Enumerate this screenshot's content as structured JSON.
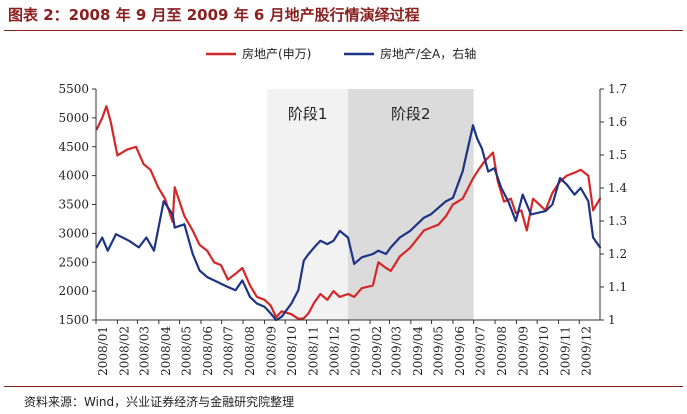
{
  "figure": {
    "title": "图表 2：2008 年 9 月至 2009 年 6 月地产股行情演绎过程",
    "source_note": "资料来源：Wind，兴业证券经济与金融研究院整理"
  },
  "chart_data": {
    "type": "line",
    "title": "",
    "xlabel": "",
    "ylabel": "",
    "y2label": "",
    "x_ticks": [
      "2008/01",
      "2008/02",
      "2008/03",
      "2008/04",
      "2008/05",
      "2008/06",
      "2008/07",
      "2008/08",
      "2008/09",
      "2008/10",
      "2008/11",
      "2008/12",
      "2009/01",
      "2009/02",
      "2009/03",
      "2009/04",
      "2009/05",
      "2009/06",
      "2009/07",
      "2009/08",
      "2009/09",
      "2009/10",
      "2009/11",
      "2009/12"
    ],
    "xlim": [
      "2008/01",
      "2009/12/31"
    ],
    "ylim": [
      1500,
      5500
    ],
    "y_ticks": [
      1500,
      2000,
      2500,
      3000,
      3500,
      4000,
      4500,
      5000,
      5500
    ],
    "y2lim": [
      1.0,
      1.7
    ],
    "y2_ticks": [
      1.0,
      1.1,
      1.2,
      1.3,
      1.4,
      1.5,
      1.6,
      1.7
    ],
    "grid": false,
    "legend": "top-center",
    "shaded_regions": [
      {
        "label": "阶段1",
        "start": "2008/09/05",
        "end": "2008/12/31",
        "color": "#f2f2f2"
      },
      {
        "label": "阶段2",
        "start": "2008/12/31",
        "end": "2009/07/01",
        "color": "#dcdbdb"
      }
    ],
    "series": [
      {
        "name": "房地产(申万)",
        "axis": "left",
        "color": "#d42828",
        "x": [
          "2008/01/02",
          "2008/01/10",
          "2008/01/16",
          "2008/01/22",
          "2008/02/01",
          "2008/02/15",
          "2008/02/28",
          "2008/03/10",
          "2008/03/20",
          "2008/03/31",
          "2008/04/10",
          "2008/04/21",
          "2008/04/24",
          "2008/05/08",
          "2008/05/20",
          "2008/05/30",
          "2008/06/10",
          "2008/06/20",
          "2008/06/30",
          "2008/07/10",
          "2008/07/21",
          "2008/07/31",
          "2008/08/11",
          "2008/08/21",
          "2008/09/01",
          "2008/09/10",
          "2008/09/18",
          "2008/09/26",
          "2008/10/10",
          "2008/10/20",
          "2008/10/28",
          "2008/11/04",
          "2008/11/12",
          "2008/11/21",
          "2008/12/01",
          "2008/12/10",
          "2008/12/19",
          "2008/12/31",
          "2009/01/09",
          "2009/01/20",
          "2009/02/05",
          "2009/02/13",
          "2009/02/24",
          "2009/03/03",
          "2009/03/16",
          "2009/03/31",
          "2009/04/10",
          "2009/04/20",
          "2009/04/30",
          "2009/05/11",
          "2009/05/22",
          "2009/06/01",
          "2009/06/15",
          "2009/06/30",
          "2009/07/08",
          "2009/07/17",
          "2009/07/29",
          "2009/08/05",
          "2009/08/14",
          "2009/08/24",
          "2009/08/31",
          "2009/09/08",
          "2009/09/16",
          "2009/09/25",
          "2009/10/13",
          "2009/10/23",
          "2009/11/03",
          "2009/11/13",
          "2009/11/24",
          "2009/12/03",
          "2009/12/14",
          "2009/12/21",
          "2009/12/31"
        ],
        "y": [
          4800,
          5000,
          5200,
          4950,
          4350,
          4450,
          4500,
          4200,
          4100,
          3800,
          3600,
          3200,
          3800,
          3300,
          3050,
          2800,
          2700,
          2500,
          2450,
          2200,
          2300,
          2400,
          2100,
          1900,
          1850,
          1750,
          1550,
          1650,
          1600,
          1520,
          1530,
          1620,
          1800,
          1950,
          1850,
          2000,
          1900,
          1950,
          1900,
          2050,
          2100,
          2500,
          2400,
          2350,
          2600,
          2750,
          2900,
          3050,
          3100,
          3150,
          3300,
          3500,
          3600,
          3950,
          4100,
          4250,
          4400,
          3900,
          3550,
          3600,
          3350,
          3400,
          3050,
          3600,
          3400,
          3700,
          3900,
          4000,
          4050,
          4100,
          4000,
          3400,
          3600
        ]
      },
      {
        "name": "房地产/全A，右轴",
        "axis": "right",
        "color": "#1d3384",
        "x": [
          "2008/01/02",
          "2008/01/10",
          "2008/01/18",
          "2008/01/30",
          "2008/02/18",
          "2008/03/03",
          "2008/03/14",
          "2008/03/25",
          "2008/04/08",
          "2008/04/21",
          "2008/04/24",
          "2008/05/08",
          "2008/05/20",
          "2008/05/30",
          "2008/06/10",
          "2008/06/20",
          "2008/06/30",
          "2008/07/10",
          "2008/07/21",
          "2008/07/31",
          "2008/08/11",
          "2008/08/21",
          "2008/09/01",
          "2008/09/10",
          "2008/09/18",
          "2008/09/26",
          "2008/10/10",
          "2008/10/20",
          "2008/10/28",
          "2008/11/04",
          "2008/11/12",
          "2008/11/21",
          "2008/12/01",
          "2008/12/10",
          "2008/12/19",
          "2008/12/31",
          "2009/01/09",
          "2009/01/20",
          "2009/02/05",
          "2009/02/13",
          "2009/02/24",
          "2009/03/03",
          "2009/03/16",
          "2009/03/31",
          "2009/04/10",
          "2009/04/20",
          "2009/04/30",
          "2009/05/11",
          "2009/05/22",
          "2009/06/01",
          "2009/06/15",
          "2009/06/30",
          "2009/07/06",
          "2009/07/13",
          "2009/07/22",
          "2009/07/31",
          "2009/08/10",
          "2009/08/20",
          "2009/08/31",
          "2009/09/10",
          "2009/09/22",
          "2009/10/13",
          "2009/10/23",
          "2009/11/03",
          "2009/11/13",
          "2009/11/24",
          "2009/12/03",
          "2009/12/14",
          "2009/12/21",
          "2009/12/31"
        ],
        "y": [
          1.22,
          1.25,
          1.21,
          1.26,
          1.24,
          1.22,
          1.25,
          1.21,
          1.36,
          1.32,
          1.28,
          1.29,
          1.2,
          1.15,
          1.13,
          1.12,
          1.11,
          1.1,
          1.09,
          1.12,
          1.07,
          1.05,
          1.04,
          1.02,
          1.0,
          1.01,
          1.05,
          1.09,
          1.18,
          1.2,
          1.22,
          1.24,
          1.23,
          1.24,
          1.27,
          1.25,
          1.17,
          1.19,
          1.2,
          1.21,
          1.2,
          1.22,
          1.25,
          1.27,
          1.29,
          1.31,
          1.32,
          1.34,
          1.36,
          1.37,
          1.45,
          1.59,
          1.55,
          1.52,
          1.45,
          1.46,
          1.4,
          1.36,
          1.3,
          1.38,
          1.32,
          1.33,
          1.35,
          1.43,
          1.41,
          1.38,
          1.4,
          1.36,
          1.25,
          1.22
        ]
      }
    ]
  }
}
